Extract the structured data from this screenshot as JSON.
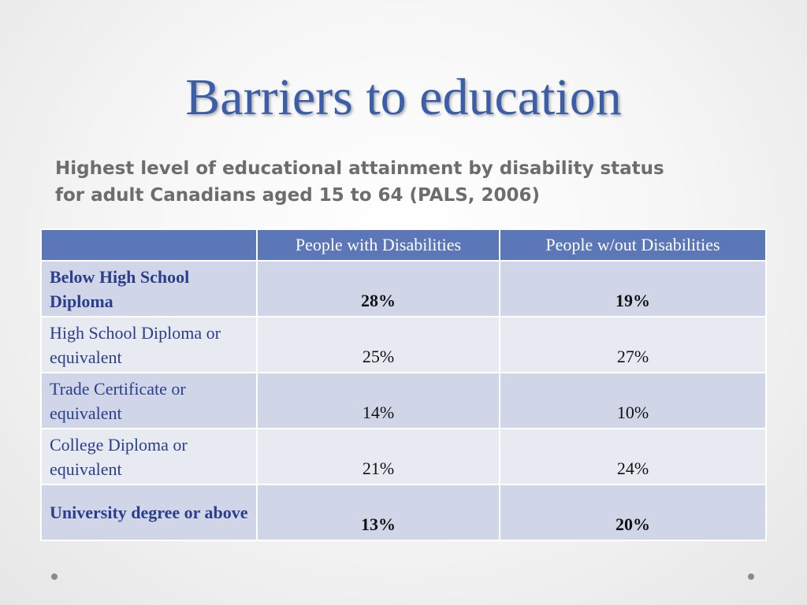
{
  "slide": {
    "title": "Barriers to education",
    "subtitle_line1": "Highest level of educational attainment by disability status",
    "subtitle_line2": "for adult Canadians aged 15 to 64  (PALS, 2006)"
  },
  "table": {
    "headers": [
      "",
      "People with Disabilities",
      "People w/out Disabilities"
    ],
    "rows": [
      {
        "label": "Below High School Diploma",
        "with": "28%",
        "without": "19%",
        "bold": true
      },
      {
        "label": "High School Diploma or equivalent",
        "with": "25%",
        "without": "27%",
        "bold": false
      },
      {
        "label": "Trade Certificate or equivalent",
        "with": "14%",
        "without": "10%",
        "bold": false
      },
      {
        "label": "College Diploma or equivalent",
        "with": "21%",
        "without": "24%",
        "bold": false
      },
      {
        "label": "University degree or above",
        "with": "13%",
        "without": "20%",
        "bold": true
      }
    ]
  },
  "colors": {
    "title": "#3a5ea8",
    "header_bg": "#5b77b8",
    "row_dark": "#d0d6e8",
    "row_light": "#e8eaf2",
    "label_text": "#2b3e8c"
  },
  "icons": [
    "bullet-dot-icon",
    "bullet-dot-icon"
  ]
}
